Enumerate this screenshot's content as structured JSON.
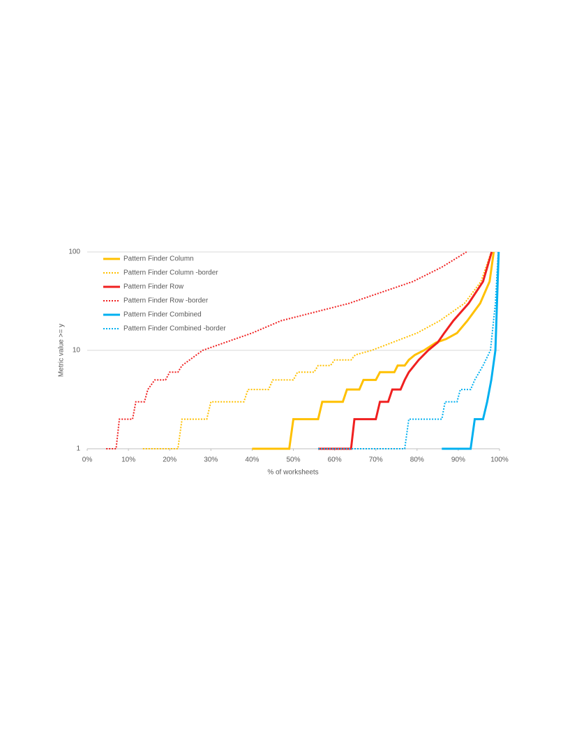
{
  "chart_data": {
    "type": "line",
    "x_label": "% of worksheets",
    "y_label": "Metric value >= y",
    "xlim": [
      0,
      100
    ],
    "xticks": [
      {
        "value": 0,
        "label": "0%"
      },
      {
        "value": 10,
        "label": "10%"
      },
      {
        "value": 20,
        "label": "20%"
      },
      {
        "value": 30,
        "label": "30%"
      },
      {
        "value": 40,
        "label": "40%"
      },
      {
        "value": 50,
        "label": "50%"
      },
      {
        "value": 60,
        "label": "60%"
      },
      {
        "value": 70,
        "label": "70%"
      },
      {
        "value": 80,
        "label": "80%"
      },
      {
        "value": 90,
        "label": "90%"
      },
      {
        "value": 100,
        "label": "100%"
      }
    ],
    "ylim": [
      1,
      100
    ],
    "yticks": [
      1,
      10,
      100
    ],
    "log_y": true,
    "grid": true,
    "legend": "upper left",
    "series": [
      {
        "name": "Pattern Finder Column",
        "color": "#FFC000",
        "dashed": false,
        "x": [
          40,
          49,
          50,
          56,
          57,
          62,
          63,
          66,
          67,
          70,
          71,
          74.5,
          75.3,
          77,
          78,
          79.5,
          81.7,
          84.6,
          87,
          89.7,
          92.2,
          95.3,
          97.6,
          98.6
        ],
        "values": [
          1,
          1,
          2,
          2,
          3,
          3,
          4,
          4,
          5,
          5,
          6,
          6,
          7,
          7,
          8,
          9,
          10,
          12,
          13,
          15,
          20,
          30,
          50,
          100
        ]
      },
      {
        "name": "Pattern Finder Column -border",
        "color": "#FFC000",
        "dashed": true,
        "x": [
          13.5,
          22,
          23,
          29,
          30,
          38,
          39,
          44,
          45,
          50,
          51,
          55,
          56,
          59,
          60,
          64,
          65,
          69,
          80,
          85.5,
          91.5,
          95.5,
          98
        ],
        "values": [
          1,
          1,
          2,
          2,
          3,
          3,
          4,
          4,
          5,
          5,
          6,
          6,
          7,
          7,
          8,
          8,
          9,
          10,
          15,
          20,
          30,
          50,
          100
        ]
      },
      {
        "name": "Pattern Finder Row",
        "color": "#F02020",
        "dashed": false,
        "x": [
          56,
          64,
          64.8,
          70,
          71,
          73,
          74,
          76,
          77,
          78,
          80.4,
          82.7,
          85,
          86.6,
          88.8,
          92.5,
          96,
          98.1
        ],
        "values": [
          1,
          1,
          2,
          2,
          3,
          3,
          4,
          4,
          5,
          6,
          8,
          10,
          12,
          15,
          20,
          30,
          50,
          100
        ]
      },
      {
        "name": "Pattern Finder Row -border",
        "color": "#F02020",
        "dashed": true,
        "x": [
          4.6,
          7,
          7.8,
          11,
          11.8,
          13.9,
          14.7,
          16.4,
          19,
          20,
          22,
          23,
          28,
          40,
          47,
          63.5,
          79,
          86,
          92
        ],
        "values": [
          1,
          1,
          2,
          2,
          3,
          3,
          4,
          5,
          5,
          6,
          6,
          7,
          10,
          15,
          20,
          30,
          50,
          70,
          100
        ]
      },
      {
        "name": "Pattern Finder Combined",
        "color": "#00B0F0",
        "dashed": false,
        "x": [
          86,
          93,
          94,
          96,
          97,
          98,
          99,
          99.8
        ],
        "values": [
          1,
          1,
          2,
          2,
          3,
          5,
          10,
          100
        ]
      },
      {
        "name": "Pattern Finder Combined -border",
        "color": "#00B0F0",
        "dashed": true,
        "x": [
          56,
          77,
          78,
          86,
          86.8,
          89.7,
          90.5,
          93,
          94,
          96,
          97.8,
          99,
          99.7
        ],
        "values": [
          1,
          1,
          2,
          2,
          3,
          3,
          4,
          4,
          5,
          7,
          10,
          30,
          100
        ]
      }
    ]
  }
}
